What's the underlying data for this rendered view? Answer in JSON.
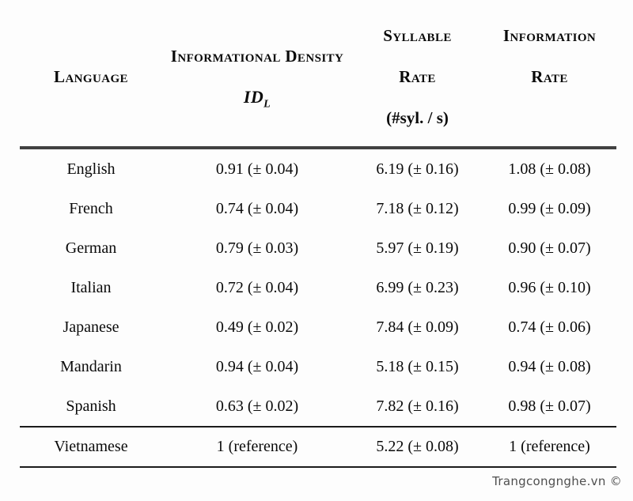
{
  "table": {
    "header": {
      "language": "Language",
      "density_line1": "Informational Density",
      "density_symbol": "ID",
      "density_subscript": "L",
      "syllable_line1": "Syllable",
      "syllable_line2": "Rate",
      "syllable_line3": "(#syl. / s)",
      "info_line1": "Information",
      "info_line2": "Rate"
    },
    "rows": [
      {
        "language": "English",
        "density": "0.91 (± 0.04)",
        "syllable_rate": "6.19 (± 0.16)",
        "information_rate": "1.08 (± 0.08)"
      },
      {
        "language": "French",
        "density": "0.74 (± 0.04)",
        "syllable_rate": "7.18 (± 0.12)",
        "information_rate": "0.99 (± 0.09)"
      },
      {
        "language": "German",
        "density": "0.79 (± 0.03)",
        "syllable_rate": "5.97 (± 0.19)",
        "information_rate": "0.90 (± 0.07)"
      },
      {
        "language": "Italian",
        "density": "0.72 (± 0.04)",
        "syllable_rate": "6.99 (± 0.23)",
        "information_rate": "0.96 (± 0.10)"
      },
      {
        "language": "Japanese",
        "density": "0.49 (± 0.02)",
        "syllable_rate": "7.84 (± 0.09)",
        "information_rate": "0.74 (± 0.06)"
      },
      {
        "language": "Mandarin",
        "density": "0.94 (± 0.04)",
        "syllable_rate": "5.18 (± 0.15)",
        "information_rate": "0.94 (± 0.08)"
      },
      {
        "language": "Spanish",
        "density": "0.63 (± 0.02)",
        "syllable_rate": "7.82 (± 0.16)",
        "information_rate": "0.98 (± 0.07)"
      },
      {
        "language": "Vietnamese",
        "density": "1 (reference)",
        "syllable_rate": "5.22 (± 0.08)",
        "information_rate": "1 (reference)"
      }
    ],
    "rule_colors": {
      "thick": "#414141",
      "thin": "#1b1b1b"
    }
  },
  "watermark": "Trangcongnghe.vn ©"
}
